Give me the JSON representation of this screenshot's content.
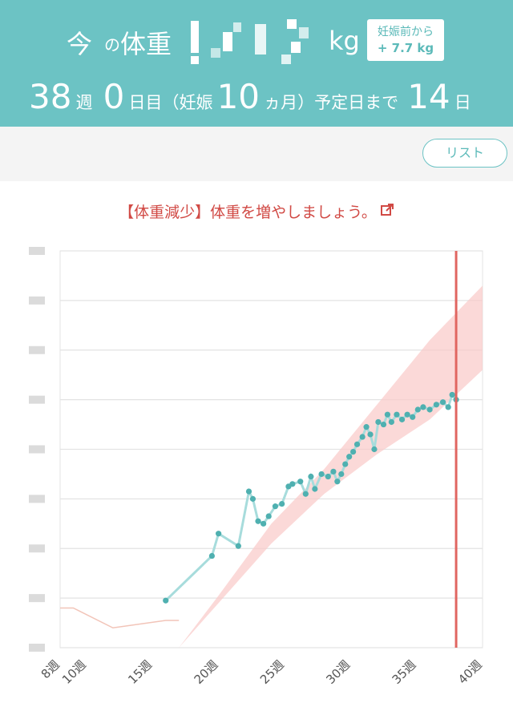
{
  "header": {
    "now_label": "今",
    "no_label": "の",
    "weight_label": "体重",
    "unit": "kg",
    "badge_title": "妊娠前から",
    "badge_value": "+ 7.7 kg",
    "week_num": "38",
    "week_label": "週",
    "day_num": "0",
    "day_label": "日目（妊娠",
    "month_num": "10",
    "month_label": "ヵ月）予定日まで",
    "days_left": "14",
    "days_left_label": "日"
  },
  "toolbar": {
    "list_label": "リスト"
  },
  "alert": {
    "text": "【体重減少】体重を増やしましょう。",
    "icon": "external-link-icon"
  },
  "colors": {
    "teal": "#6cc3c4",
    "alert_red": "#d14a45",
    "band_pink": "#f9c9c7",
    "today_line": "#e06661"
  },
  "chart_data": {
    "type": "line",
    "x_unit": "週",
    "xlim": [
      8,
      40
    ],
    "x_ticks": [
      8,
      10,
      15,
      20,
      25,
      30,
      35,
      40
    ],
    "x_tick_labels": [
      "8週",
      "10週",
      "15週",
      "20週",
      "25週",
      "30週",
      "35週",
      "40週"
    ],
    "y_scale_steps": 8,
    "series": [
      {
        "values": [
          [
            16,
            0.95
          ],
          [
            19.5,
            1.85
          ],
          [
            20,
            2.3
          ],
          [
            21.5,
            2.05
          ],
          [
            22.3,
            3.15
          ],
          [
            22.6,
            3.0
          ],
          [
            23,
            2.55
          ],
          [
            23.4,
            2.5
          ],
          [
            23.8,
            2.65
          ],
          [
            24.3,
            2.85
          ],
          [
            24.8,
            2.9
          ],
          [
            25.3,
            3.25
          ],
          [
            25.6,
            3.3
          ],
          [
            26.2,
            3.35
          ],
          [
            26.6,
            3.1
          ],
          [
            27,
            3.45
          ],
          [
            27.3,
            3.2
          ],
          [
            27.8,
            3.5
          ],
          [
            28.3,
            3.45
          ],
          [
            28.7,
            3.55
          ],
          [
            29,
            3.35
          ],
          [
            29.3,
            3.5
          ],
          [
            29.6,
            3.7
          ],
          [
            29.9,
            3.85
          ],
          [
            30.2,
            3.95
          ],
          [
            30.5,
            4.1
          ],
          [
            30.9,
            4.25
          ],
          [
            31.2,
            4.45
          ],
          [
            31.5,
            4.3
          ],
          [
            31.8,
            4.0
          ],
          [
            32.1,
            4.55
          ],
          [
            32.5,
            4.5
          ],
          [
            32.8,
            4.7
          ],
          [
            33.1,
            4.55
          ],
          [
            33.5,
            4.7
          ],
          [
            33.9,
            4.6
          ],
          [
            34.3,
            4.7
          ],
          [
            34.7,
            4.65
          ],
          [
            35.1,
            4.8
          ],
          [
            35.5,
            4.85
          ],
          [
            36,
            4.8
          ],
          [
            36.5,
            4.9
          ],
          [
            37,
            4.95
          ],
          [
            37.4,
            4.85
          ],
          [
            37.7,
            5.1
          ],
          [
            38,
            5.0
          ]
        ]
      }
    ],
    "recommended_band": {
      "lower": [
        [
          17,
          0
        ],
        [
          20,
          0.9
        ],
        [
          24,
          2.1
        ],
        [
          28,
          3.1
        ],
        [
          32,
          3.9
        ],
        [
          36,
          4.6
        ],
        [
          40,
          5.6
        ]
      ],
      "upper": [
        [
          17,
          0
        ],
        [
          20,
          1.05
        ],
        [
          24,
          2.5
        ],
        [
          28,
          3.6
        ],
        [
          32,
          4.9
        ],
        [
          36,
          6.2
        ],
        [
          40,
          7.3
        ]
      ]
    },
    "baseline": [
      [
        8,
        0.8
      ],
      [
        9,
        0.8
      ],
      [
        12,
        0.4
      ],
      [
        16,
        0.55
      ],
      [
        17,
        0.55
      ]
    ],
    "current_week": 38
  }
}
